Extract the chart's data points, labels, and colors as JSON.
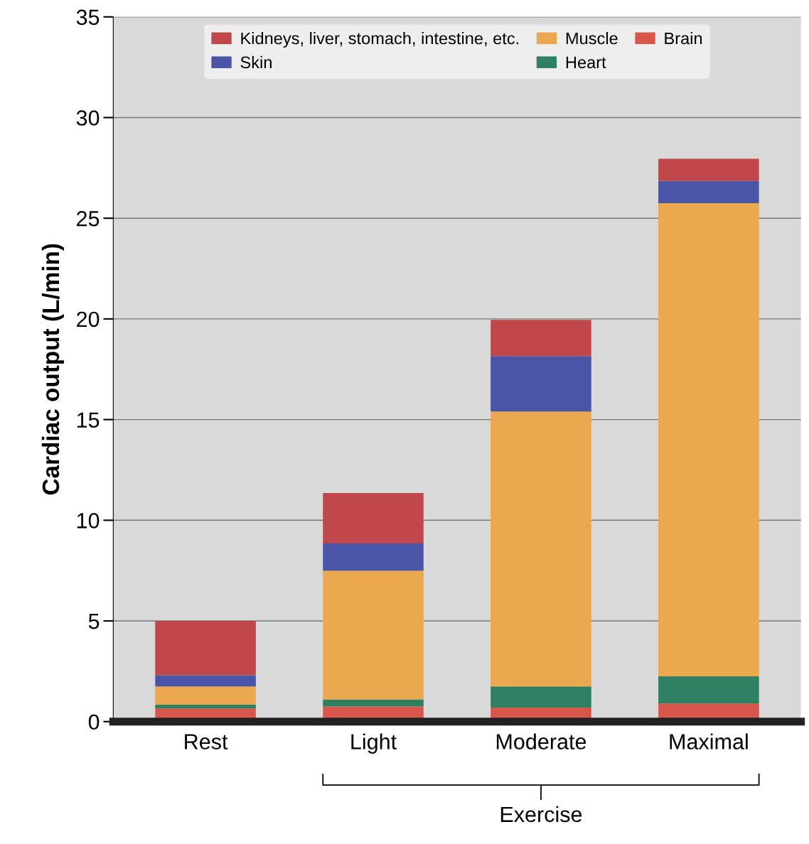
{
  "chart_data": {
    "type": "bar",
    "stacked": true,
    "ylabel": "Cardiac output (L/min)",
    "categories": [
      "Rest",
      "Light",
      "Moderate",
      "Maximal"
    ],
    "series": [
      {
        "name": "Brain",
        "color": "#d9574a",
        "values": [
          0.65,
          0.75,
          0.7,
          0.9
        ]
      },
      {
        "name": "Heart",
        "color": "#2e8060",
        "values": [
          0.2,
          0.35,
          1.05,
          1.35
        ]
      },
      {
        "name": "Muscle",
        "color": "#eba84e",
        "values": [
          0.9,
          6.4,
          13.65,
          23.5
        ]
      },
      {
        "name": "Skin",
        "color": "#4a55a8",
        "values": [
          0.55,
          1.35,
          2.75,
          1.1
        ]
      },
      {
        "name": "Kidneys, liver, stomach, intestine, etc.",
        "color": "#c0474a",
        "values": [
          2.7,
          2.5,
          1.8,
          1.1
        ]
      }
    ],
    "ylim": [
      0,
      35
    ],
    "yticks": [
      0,
      5,
      10,
      15,
      20,
      25,
      30,
      35
    ],
    "grid": "y",
    "legend": "top",
    "annotations": [
      "Exercise"
    ]
  }
}
